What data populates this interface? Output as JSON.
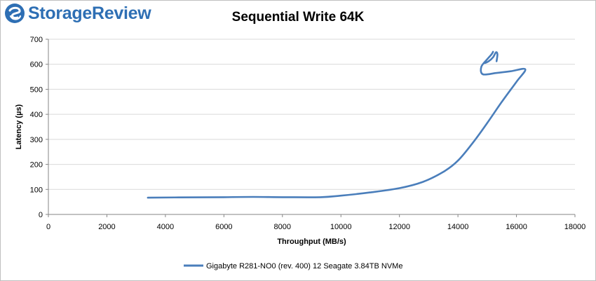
{
  "logo": {
    "text": "StorageReview",
    "icon": "storagereview-swirl-icon",
    "color": "#2e6fb4"
  },
  "chart_data": {
    "type": "line",
    "title": "Sequential Write 64K",
    "xlabel": "Throughput (MB/s)",
    "ylabel": "Latency (µs)",
    "xlim": [
      0,
      18000
    ],
    "ylim": [
      0,
      700
    ],
    "xticks": [
      0,
      2000,
      4000,
      6000,
      8000,
      10000,
      12000,
      14000,
      16000,
      18000
    ],
    "yticks": [
      0,
      100,
      200,
      300,
      400,
      500,
      600,
      700
    ],
    "grid": "horizontal",
    "legend_position": "bottom",
    "series": [
      {
        "name": "Gigabyte R281-NO0 (rev. 400) 12 Seagate 3.84TB NVMe",
        "color": "#4a7ebb",
        "points": [
          [
            3400,
            67
          ],
          [
            4500,
            68
          ],
          [
            6000,
            69
          ],
          [
            7000,
            70
          ],
          [
            8000,
            69
          ],
          [
            9300,
            69
          ],
          [
            10000,
            75
          ],
          [
            11000,
            88
          ],
          [
            12000,
            105
          ],
          [
            12800,
            130
          ],
          [
            13500,
            170
          ],
          [
            14000,
            215
          ],
          [
            14500,
            285
          ],
          [
            15000,
            365
          ],
          [
            15500,
            450
          ],
          [
            16000,
            530
          ],
          [
            16300,
            580
          ],
          [
            15800,
            572
          ],
          [
            15300,
            565
          ],
          [
            14850,
            560
          ],
          [
            14800,
            590
          ],
          [
            15000,
            620
          ],
          [
            15150,
            640
          ],
          [
            15200,
            650
          ],
          [
            15150,
            640
          ],
          [
            15000,
            620
          ],
          [
            14900,
            605
          ],
          [
            15050,
            612
          ],
          [
            15200,
            628
          ],
          [
            15300,
            648
          ],
          [
            15350,
            640
          ],
          [
            15320,
            612
          ]
        ]
      }
    ]
  }
}
